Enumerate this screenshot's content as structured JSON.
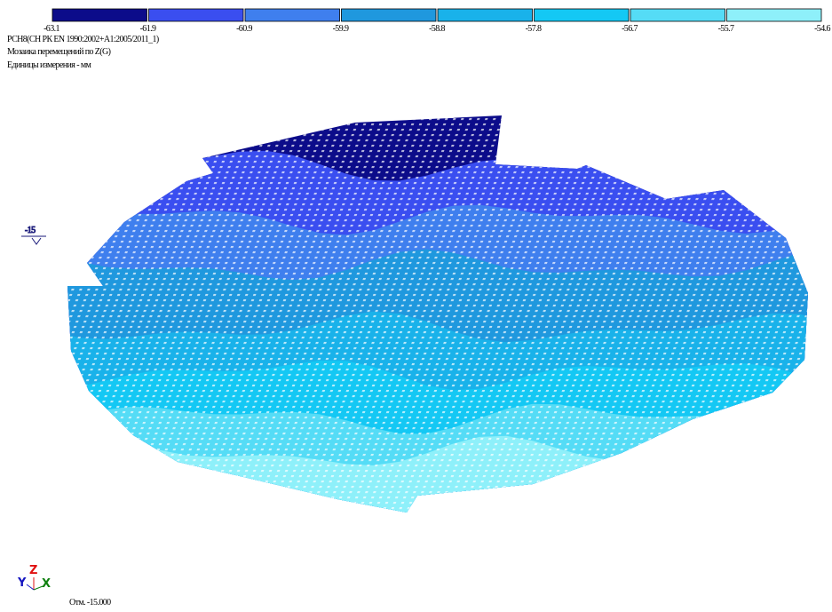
{
  "legend": {
    "ticks": [
      -63.1,
      -61.9,
      -60.9,
      -59.9,
      -58.8,
      -57.8,
      -56.7,
      -55.7,
      -54.6
    ],
    "colors": [
      "#0c0c8a",
      "#3a4ef0",
      "#3f7fee",
      "#1f98de",
      "#19b2ea",
      "#14c8f4",
      "#55dcf6",
      "#8ef0fa"
    ]
  },
  "header": {
    "lines": [
      "РСН8(СН РК EN 1990:2002+A1:2005/2011_1)",
      "Мозаика перемещений по Z(G)",
      "Единицы измерения - мм"
    ]
  },
  "level_marker": -15,
  "axes": {
    "y": "Y",
    "z": "Z",
    "x": "X"
  },
  "footer": "Отм. -15.000"
}
